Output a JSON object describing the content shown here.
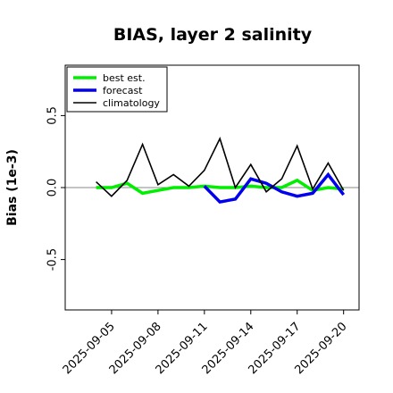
{
  "chart_data": {
    "type": "line",
    "title": "BIAS, layer 2 salinity",
    "xlabel": "",
    "ylabel": "Bias (1e-3)",
    "ylim": [
      -0.85,
      0.85
    ],
    "yticks": [
      -0.5,
      0.0,
      0.5
    ],
    "ytick_labels": [
      "-0.5",
      "0.0",
      "0.5"
    ],
    "xlim": [
      "2025-09-02",
      "2025-09-21"
    ],
    "xticks": [
      "2025-09-05",
      "2025-09-08",
      "2025-09-11",
      "2025-09-14",
      "2025-09-17",
      "2025-09-20"
    ],
    "highlighted_xtick": "2025-09-11",
    "highlight_color": "#228B22",
    "zero_line": true,
    "grid": false,
    "legend_position": "top-left",
    "series": [
      {
        "name": "best est.",
        "color": "#00ee00",
        "x": [
          "2025-09-04",
          "2025-09-05",
          "2025-09-06",
          "2025-09-07",
          "2025-09-08",
          "2025-09-09",
          "2025-09-10",
          "2025-09-11",
          "2025-09-12",
          "2025-09-13",
          "2025-09-14",
          "2025-09-15",
          "2025-09-16",
          "2025-09-17",
          "2025-09-18",
          "2025-09-19",
          "2025-09-20"
        ],
        "values": [
          0.0,
          0.0,
          0.03,
          -0.04,
          -0.02,
          0.0,
          0.0,
          0.01,
          0.0,
          0.0,
          0.01,
          0.0,
          0.0,
          0.05,
          -0.02,
          0.0,
          -0.01
        ]
      },
      {
        "name": "forecast",
        "color": "#0000ee",
        "x": [
          "2025-09-11",
          "2025-09-12",
          "2025-09-13",
          "2025-09-14",
          "2025-09-15",
          "2025-09-16",
          "2025-09-17",
          "2025-09-18",
          "2025-09-19",
          "2025-09-20"
        ],
        "values": [
          0.01,
          -0.1,
          -0.08,
          0.06,
          0.03,
          -0.03,
          -0.06,
          -0.04,
          0.09,
          -0.05
        ]
      },
      {
        "name": "climatology",
        "color": "#000000",
        "x": [
          "2025-09-04",
          "2025-09-05",
          "2025-09-06",
          "2025-09-07",
          "2025-09-08",
          "2025-09-09",
          "2025-09-10",
          "2025-09-11",
          "2025-09-12",
          "2025-09-13",
          "2025-09-14",
          "2025-09-15",
          "2025-09-16",
          "2025-09-17",
          "2025-09-18",
          "2025-09-19",
          "2025-09-20"
        ],
        "values": [
          0.04,
          -0.06,
          0.05,
          0.3,
          0.02,
          0.09,
          0.01,
          0.12,
          0.34,
          0.0,
          0.16,
          -0.03,
          0.06,
          0.29,
          -0.01,
          0.17,
          -0.02
        ]
      }
    ]
  }
}
